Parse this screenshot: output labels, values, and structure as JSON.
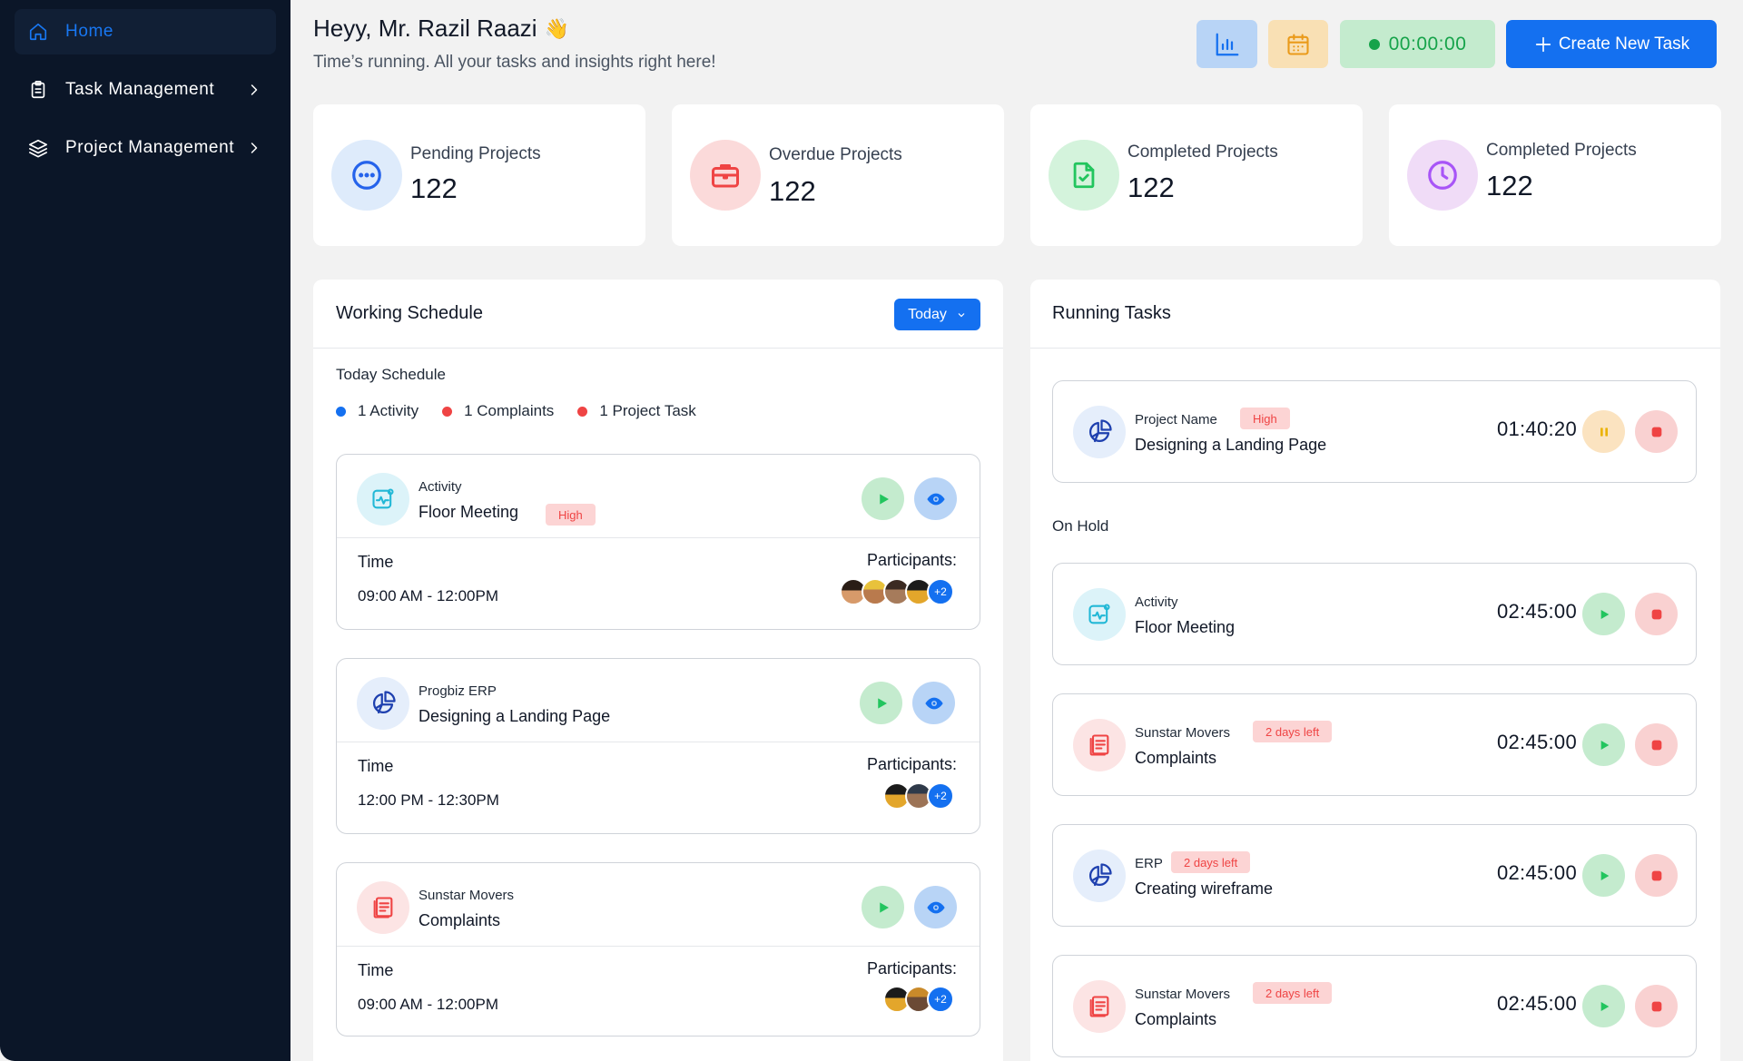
{
  "sidebar": {
    "items": [
      {
        "label": "Home",
        "icon": "home-icon",
        "active": true
      },
      {
        "label": "Task Management",
        "icon": "clipboard-icon"
      },
      {
        "label": "Project Management",
        "icon": "layers-icon"
      }
    ]
  },
  "header": {
    "greeting": "Heyy, Mr. Razil Raazi",
    "emoji": "👋",
    "subtitle": "Time’s running. All your tasks and insights right here!",
    "timer": "00:00:00",
    "create_label": "Create New Task"
  },
  "stats": [
    {
      "label": "Pending Projects",
      "value": "122",
      "icon": "more-icon",
      "color": "#3b82f6"
    },
    {
      "label": "Overdue Projects",
      "value": "122",
      "icon": "briefcase-icon",
      "color": "#ef4444"
    },
    {
      "label": "Completed Projects",
      "value": "122",
      "icon": "file-check-icon",
      "color": "#22c55e"
    },
    {
      "label": "Completed Projects",
      "value": "122",
      "icon": "clock-icon",
      "color": "#a855f7"
    }
  ],
  "schedule": {
    "title": "Working Schedule",
    "filter": "Today",
    "section": "Today Schedule",
    "legend": [
      {
        "label": "1 Activity",
        "color": "#1470f0"
      },
      {
        "label": "1  Complaints",
        "color": "#ef4444"
      },
      {
        "label": "1 Project Task",
        "color": "#ef4444"
      }
    ],
    "time_label": "Time",
    "participants_label": "Participants:",
    "cards": [
      {
        "sub": "Activity",
        "title": "Floor Meeting",
        "badge": "High",
        "time": "09:00 AM - 12:00PM",
        "more": "+2"
      },
      {
        "sub": "Progbiz ERP",
        "title": "Designing  a Landing Page",
        "time": "12:00 PM - 12:30PM",
        "more": "+2"
      },
      {
        "sub": "Sunstar Movers",
        "title": "Complaints",
        "time": "09:00 AM - 12:00PM",
        "more": "+2"
      }
    ]
  },
  "running": {
    "title": "Running Tasks",
    "on_hold_label": "On Hold",
    "active": {
      "sub": "Project Name",
      "title": "Designing  a Landing Page",
      "badge": "High",
      "time": "01:40:20"
    },
    "hold": [
      {
        "sub": "Activity",
        "title": "Floor Meeting",
        "time": "02:45:00"
      },
      {
        "sub": "Sunstar Movers",
        "title": "Complaints",
        "badge": "2 days left",
        "time": "02:45:00"
      },
      {
        "sub": "ERP",
        "title": "Creating wireframe",
        "badge": "2 days left",
        "time": "02:45:00"
      },
      {
        "sub": "Sunstar Movers",
        "title": "Complaints",
        "badge": "2 days left",
        "time": "02:45:00"
      }
    ]
  }
}
